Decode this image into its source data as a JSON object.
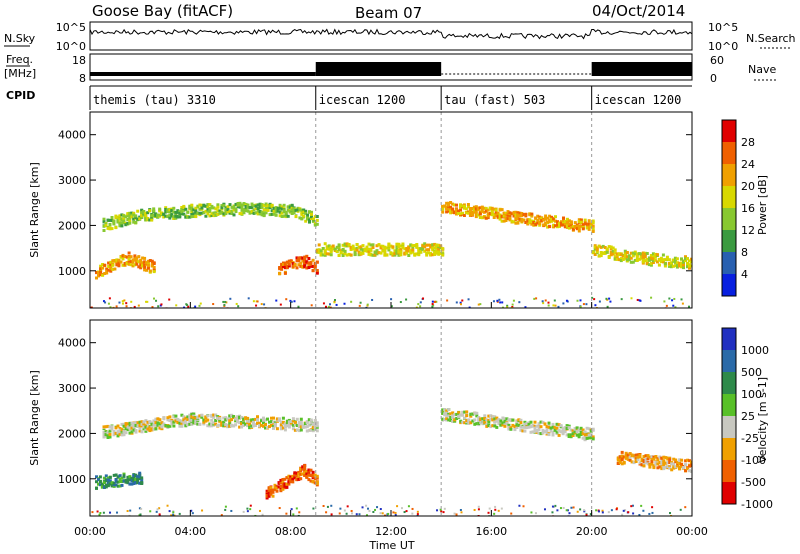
{
  "header": {
    "station": "Goose Bay (fitACF)",
    "beam": "Beam 07",
    "date": "04/Oct/2014"
  },
  "left_labels": {
    "nsky": "N.Sky",
    "freq_top": "Freq.",
    "freq_unit": "[MHz]",
    "cpid": "CPID"
  },
  "right_labels": {
    "nsearch": "N.Search",
    "nave": "Nave"
  },
  "strip_ticks": {
    "noise_left": [
      "10^5",
      "10^0"
    ],
    "noise_right": [
      "10^5",
      "10^0"
    ],
    "freq_left": [
      "18",
      "8"
    ],
    "nave_right": [
      "60",
      "0"
    ]
  },
  "cpid_segments": [
    {
      "label": "themis (tau) 3310",
      "start_h": 0,
      "end_h": 9
    },
    {
      "label": "icescan 1200",
      "start_h": 9,
      "end_h": 14
    },
    {
      "label": "tau (fast) 503",
      "start_h": 14,
      "end_h": 20
    },
    {
      "label": "icescan 1200",
      "start_h": 20,
      "end_h": 24
    }
  ],
  "panels": {
    "ylabel": "Slant Range [km]",
    "yticks": [
      "4000",
      "3000",
      "2000",
      "1000"
    ],
    "xticks": [
      "00:00",
      "04:00",
      "08:00",
      "12:00",
      "16:00",
      "20:00",
      "00:00"
    ],
    "xlabel": "Time UT"
  },
  "power_scale": {
    "label": "Power [dB]",
    "ticks": [
      "28",
      "24",
      "20",
      "16",
      "12",
      "8",
      "4"
    ],
    "colors": [
      "#e00000",
      "#f06000",
      "#f0a000",
      "#d8d800",
      "#88c830",
      "#3a9a40",
      "#2860b0",
      "#0820e0"
    ]
  },
  "velocity_scale": {
    "label": "Velocity [m s-1]",
    "ticks": [
      "1000",
      "500",
      "100",
      "25",
      "-25",
      "-100",
      "-500",
      "-1000"
    ],
    "colors": [
      "#2030c0",
      "#2a6aa8",
      "#2e8a4a",
      "#58c028",
      "#c8c8c0",
      "#f0a000",
      "#f06000",
      "#e00000"
    ]
  },
  "chart_data": {
    "type": "heatmap",
    "x_range_hours": [
      0,
      24
    ],
    "y_range_km": [
      180,
      4500
    ],
    "power_features": [
      {
        "name": "upper arc",
        "points": [
          [
            0.5,
            2050
          ],
          [
            2,
            2250
          ],
          [
            4,
            2350
          ],
          [
            6,
            2400
          ],
          [
            8,
            2350
          ],
          [
            9,
            2150
          ]
        ],
        "value_db": 12
      },
      {
        "name": "lower echo 1",
        "points": [
          [
            0.2,
            1000
          ],
          [
            1.5,
            1300
          ],
          [
            2.5,
            1100
          ]
        ],
        "value_db": 22
      },
      {
        "name": "lower echo 2",
        "points": [
          [
            7.5,
            1050
          ],
          [
            8.5,
            1250
          ],
          [
            9,
            1100
          ]
        ],
        "value_db": 26
      },
      {
        "name": "icescan band",
        "points": [
          [
            9,
            1500
          ],
          [
            14,
            1500
          ]
        ],
        "value_db": 16
      },
      {
        "name": "tau main band",
        "points": [
          [
            14,
            2450
          ],
          [
            17,
            2200
          ],
          [
            20,
            2000
          ]
        ],
        "value_db": 20
      },
      {
        "name": "late echo",
        "points": [
          [
            20,
            1500
          ],
          [
            22,
            1300
          ],
          [
            24,
            1200
          ]
        ],
        "value_db": 18
      }
    ],
    "velocity_features": [
      {
        "name": "upper arc",
        "points": [
          [
            0.5,
            2050
          ],
          [
            4,
            2350
          ],
          [
            9,
            2200
          ]
        ],
        "value_ms": 0
      },
      {
        "name": "lower echo 1",
        "points": [
          [
            0.2,
            950
          ],
          [
            2,
            1050
          ]
        ],
        "value_ms": 150
      },
      {
        "name": "lower echo 2",
        "points": [
          [
            7,
            700
          ],
          [
            8.5,
            1200
          ],
          [
            9,
            1000
          ]
        ],
        "value_ms": -200
      },
      {
        "name": "tau main band",
        "points": [
          [
            14,
            2450
          ],
          [
            20,
            2000
          ]
        ],
        "value_ms": 0
      },
      {
        "name": "late echo",
        "points": [
          [
            21,
            1500
          ],
          [
            24,
            1300
          ]
        ],
        "value_ms": -60
      }
    ]
  }
}
